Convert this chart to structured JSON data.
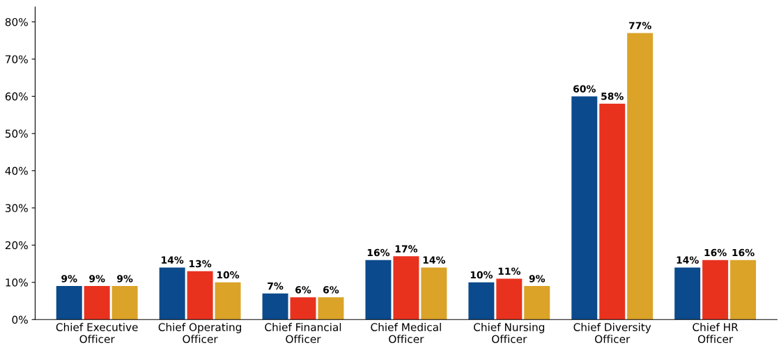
{
  "chart_data": {
    "type": "bar",
    "categories": [
      "Chief Executive\nOfficer",
      "Chief Operating\nOfficer",
      "Chief Financial\nOfficer",
      "Chief Medical\nOfficer",
      "Chief Nursing\nOfficer",
      "Chief Diversity\nOfficer",
      "Chief HR\nOfficer"
    ],
    "series": [
      {
        "color": "#0b4a8c",
        "values": [
          9,
          14,
          7,
          16,
          10,
          60,
          14
        ],
        "value_labels": [
          "9%",
          "14%",
          "7%",
          "16%",
          "10%",
          "60%",
          "14%"
        ]
      },
      {
        "color": "#e8321e",
        "values": [
          9,
          13,
          6,
          17,
          11,
          58,
          16
        ],
        "value_labels": [
          "9%",
          "13%",
          "6%",
          "17%",
          "11%",
          "58%",
          "16%"
        ]
      },
      {
        "color": "#dba328",
        "values": [
          9,
          10,
          6,
          14,
          9,
          77,
          16
        ],
        "value_labels": [
          "9%",
          "10%",
          "6%",
          "14%",
          "9%",
          "77%",
          "16%"
        ]
      }
    ],
    "ylim": [
      0,
      84
    ],
    "yticks": [
      {
        "value": 0,
        "label": "0%"
      },
      {
        "value": 10,
        "label": "10%"
      },
      {
        "value": 20,
        "label": "20%"
      },
      {
        "value": 30,
        "label": "30%"
      },
      {
        "value": 40,
        "label": "40%"
      },
      {
        "value": 50,
        "label": "50%"
      },
      {
        "value": 60,
        "label": "60%"
      },
      {
        "value": 70,
        "label": "70%"
      },
      {
        "value": 80,
        "label": "80%"
      }
    ],
    "grid": false,
    "legend": false
  }
}
